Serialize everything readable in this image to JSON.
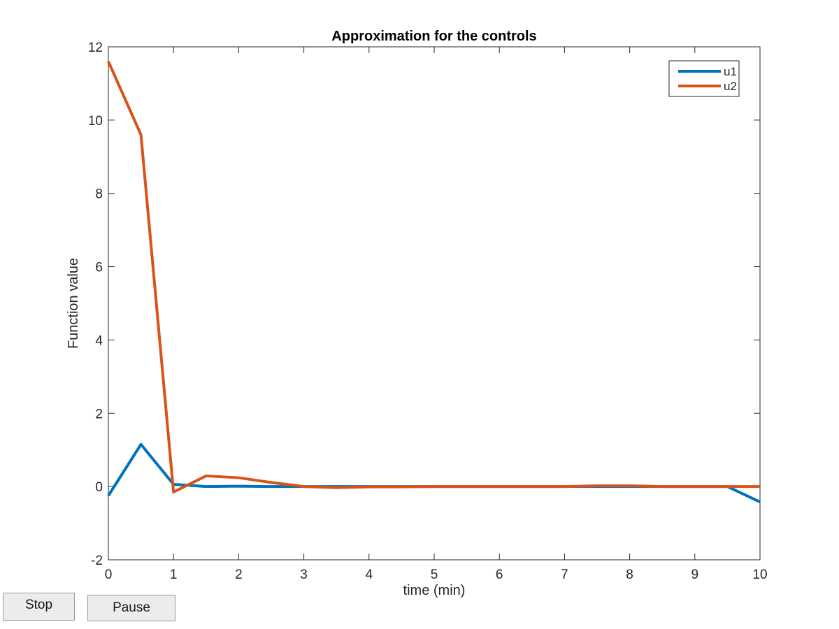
{
  "controls": {
    "stop_label": "Stop",
    "pause_label": "Pause"
  },
  "chart_data": {
    "type": "line",
    "title": "Approximation for the controls",
    "xlabel": "time (min)",
    "ylabel": "Function value",
    "xlim": [
      0,
      10
    ],
    "ylim": [
      -2,
      12
    ],
    "xticks": [
      0,
      1,
      2,
      3,
      4,
      5,
      6,
      7,
      8,
      9,
      10
    ],
    "yticks": [
      -2,
      0,
      2,
      4,
      6,
      8,
      10,
      12
    ],
    "grid": false,
    "legend_position": "top-right",
    "x": [
      0,
      0.5,
      1,
      1.5,
      2,
      2.5,
      3,
      3.5,
      4,
      4.5,
      5,
      5.5,
      6,
      6.5,
      7,
      7.5,
      8,
      8.5,
      9,
      9.5,
      10
    ],
    "series": [
      {
        "name": "u1",
        "color": "#0072bd",
        "values": [
          -0.25,
          1.15,
          0.06,
          0.0,
          0.01,
          0.0,
          0.0,
          0.0,
          0.0,
          0.0,
          0.0,
          0.0,
          0.0,
          0.0,
          0.0,
          0.0,
          0.0,
          0.0,
          0.0,
          0.0,
          -0.42
        ]
      },
      {
        "name": "u2",
        "color": "#d95319",
        "values": [
          11.6,
          9.6,
          -0.15,
          0.29,
          0.24,
          0.11,
          0.0,
          -0.03,
          -0.01,
          -0.01,
          0.0,
          0.0,
          0.0,
          0.0,
          0.0,
          0.02,
          0.02,
          0.0,
          0.0,
          0.0,
          0.0
        ]
      }
    ]
  }
}
